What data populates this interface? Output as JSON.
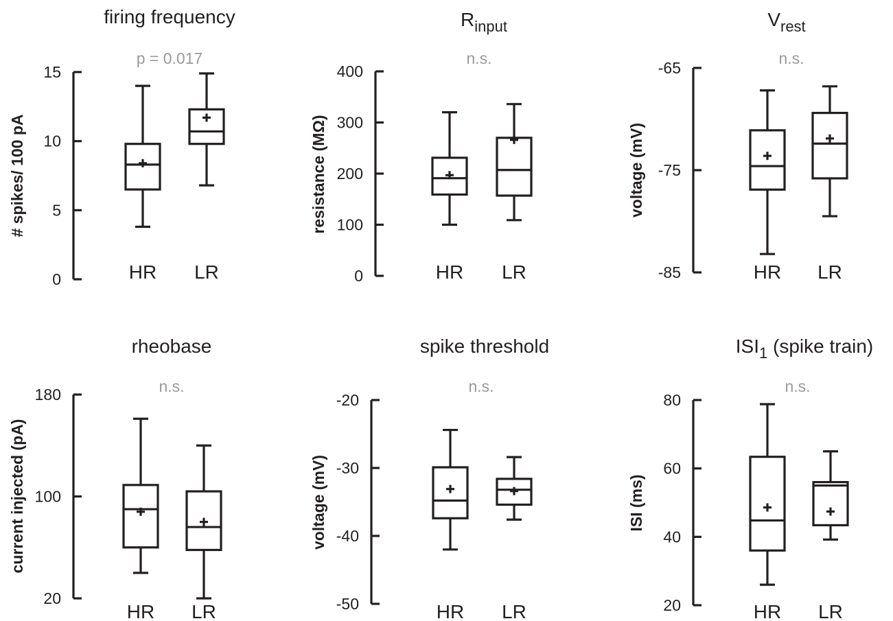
{
  "colors": {
    "ink": "#231f20",
    "pvalue": "#9a9a9a"
  },
  "chart_data": [
    {
      "type": "box",
      "title": "firing frequency",
      "title_sub": "",
      "title_suffix": "",
      "annotation": "p = 0.017",
      "ylabel": "# spikes/ 100 pA",
      "ylim": [
        0,
        15
      ],
      "yticks": [
        0,
        5,
        10,
        15
      ],
      "ytick_labels": [
        "0",
        "5",
        "10",
        "15"
      ],
      "categories": [
        "HR",
        "LR"
      ],
      "boxes": [
        {
          "category": "HR",
          "whisker_low": 3.8,
          "q1": 6.5,
          "median": 8.3,
          "q3": 9.8,
          "whisker_high": 14.0,
          "mean": 8.4
        },
        {
          "category": "LR",
          "whisker_low": 6.8,
          "q1": 9.8,
          "median": 10.7,
          "q3": 12.3,
          "whisker_high": 14.9,
          "mean": 11.7
        }
      ]
    },
    {
      "type": "box",
      "title": "R",
      "title_sub": "input",
      "title_suffix": "",
      "annotation": "n.s.",
      "ylabel": "resistance (MΩ)",
      "ylim": [
        0,
        400
      ],
      "yticks": [
        0,
        100,
        200,
        300,
        400
      ],
      "ytick_labels": [
        "0",
        "100",
        "200",
        "300",
        "400"
      ],
      "categories": [
        "HR",
        "LR"
      ],
      "boxes": [
        {
          "category": "HR",
          "whisker_low": 100,
          "q1": 159,
          "median": 191,
          "q3": 231,
          "whisker_high": 320,
          "mean": 197
        },
        {
          "category": "LR",
          "whisker_low": 109,
          "q1": 157,
          "median": 207,
          "q3": 270,
          "whisker_high": 336,
          "mean": 266
        }
      ]
    },
    {
      "type": "box",
      "title": "V",
      "title_sub": "rest",
      "title_suffix": "",
      "annotation": "n.s.",
      "ylabel": "voltage (mV)",
      "ylim": [
        -85,
        -65
      ],
      "yticks": [
        -85,
        -75,
        -65
      ],
      "ytick_labels": [
        "-85",
        "-75",
        "-65"
      ],
      "categories": [
        "HR",
        "LR"
      ],
      "boxes": [
        {
          "category": "HR",
          "whisker_low": -83.2,
          "q1": -76.9,
          "median": -74.6,
          "q3": -71.1,
          "whisker_high": -67.2,
          "mean": -73.6
        },
        {
          "category": "LR",
          "whisker_low": -79.5,
          "q1": -75.8,
          "median": -72.4,
          "q3": -69.4,
          "whisker_high": -66.8,
          "mean": -71.9
        }
      ]
    },
    {
      "type": "box",
      "title": "rheobase",
      "title_sub": "",
      "title_suffix": "",
      "annotation": "n.s.",
      "ylabel": "current injected (pA)",
      "ylim": [
        20,
        180
      ],
      "yticks": [
        20,
        100,
        180
      ],
      "ytick_labels": [
        "20",
        "100",
        "180"
      ],
      "categories": [
        "HR",
        "LR"
      ],
      "boxes": [
        {
          "category": "HR",
          "whisker_low": 40,
          "q1": 60,
          "median": 90,
          "q3": 109,
          "whisker_high": 161,
          "mean": 88
        },
        {
          "category": "LR",
          "whisker_low": 20,
          "q1": 58,
          "median": 76,
          "q3": 104,
          "whisker_high": 140,
          "mean": 80
        }
      ]
    },
    {
      "type": "box",
      "title": "spike threshold",
      "title_sub": "",
      "title_suffix": "",
      "annotation": "n.s.",
      "ylabel": "voltage (mV)",
      "ylim": [
        -50,
        -20
      ],
      "yticks": [
        -50,
        -40,
        -30,
        -20
      ],
      "ytick_labels": [
        "-50",
        "-40",
        "-30",
        "-20"
      ],
      "categories": [
        "HR",
        "LR"
      ],
      "boxes": [
        {
          "category": "HR",
          "whisker_low": -42.0,
          "q1": -37.4,
          "median": -34.8,
          "q3": -29.9,
          "whisker_high": -24.4,
          "mean": -33.1
        },
        {
          "category": "LR",
          "whisker_low": -37.6,
          "q1": -35.4,
          "median": -33.2,
          "q3": -31.6,
          "whisker_high": -28.4,
          "mean": -33.4
        }
      ]
    },
    {
      "type": "box",
      "title": "ISI",
      "title_sub": "1",
      "title_suffix": " (spike train)",
      "annotation": "n.s.",
      "ylabel": "ISI (ms)",
      "ylim": [
        20,
        80
      ],
      "yticks": [
        20,
        40,
        60,
        80
      ],
      "ytick_labels": [
        "20",
        "40",
        "60",
        "80"
      ],
      "categories": [
        "HR",
        "LR"
      ],
      "boxes": [
        {
          "category": "HR",
          "whisker_low": 26,
          "q1": 36,
          "median": 44.8,
          "q3": 63.4,
          "whisker_high": 78.8,
          "mean": 48.6
        },
        {
          "category": "LR",
          "whisker_low": 39.2,
          "q1": 43.4,
          "median": 55.0,
          "q3": 56.0,
          "whisker_high": 65.0,
          "mean": 47.4
        }
      ]
    }
  ]
}
